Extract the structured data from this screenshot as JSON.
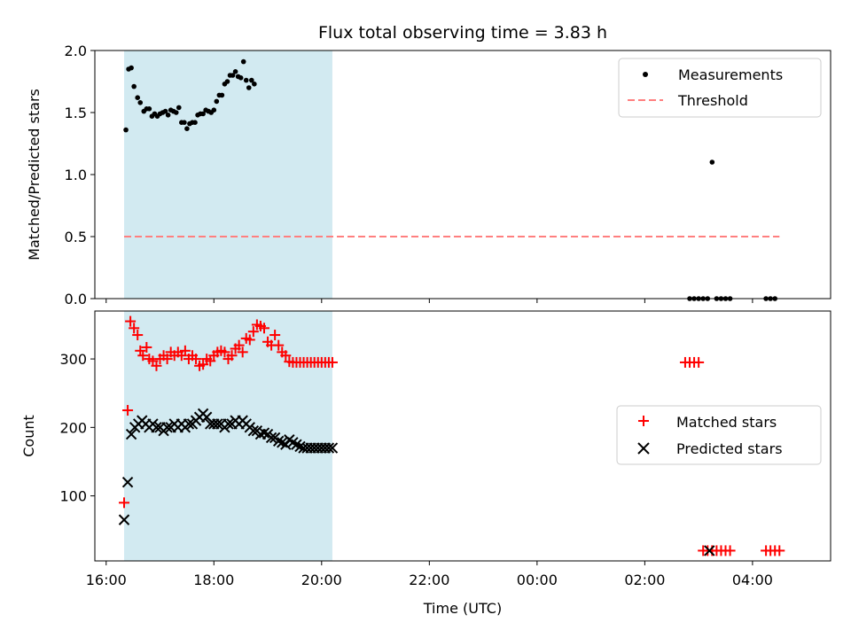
{
  "chart_data": [
    {
      "type": "scatter",
      "title": "Flux total observing time = 3.83 h",
      "xlabel": "",
      "ylabel": "Matched/Predicted stars",
      "xlim": [
        "16:00",
        "05:00"
      ],
      "ylim": [
        0,
        2.0
      ],
      "yticks": [
        "0.0",
        "0.5",
        "1.0",
        "1.5",
        "2.0"
      ],
      "legend": "top-right",
      "shaded_interval": [
        "16:20",
        "20:12"
      ],
      "shade_color": "#add8e6",
      "series": [
        {
          "name": "Measurements",
          "marker": "dot",
          "color": "#000000",
          "x": [
            "16:22",
            "16:25",
            "16:28",
            "16:31",
            "16:35",
            "16:38",
            "16:42",
            "16:45",
            "16:48",
            "16:51",
            "16:54",
            "16:57",
            "17:00",
            "17:03",
            "17:06",
            "17:09",
            "17:12",
            "17:15",
            "17:18",
            "17:21",
            "17:24",
            "17:27",
            "17:30",
            "17:33",
            "17:36",
            "17:39",
            "17:42",
            "17:45",
            "17:48",
            "17:51",
            "17:54",
            "17:57",
            "18:00",
            "18:03",
            "18:06",
            "18:09",
            "18:12",
            "18:15",
            "18:18",
            "18:21",
            "18:24",
            "18:27",
            "18:30",
            "18:33",
            "18:36",
            "18:39",
            "18:42",
            "18:45",
            "18:48",
            "18:51",
            "18:54",
            "18:57",
            "19:00",
            "19:03",
            "19:06",
            "19:09",
            "19:12",
            "19:15",
            "19:18",
            "19:21",
            "19:24",
            "19:27",
            "19:30",
            "19:33",
            "19:36",
            "19:39",
            "19:42",
            "19:45",
            "19:48",
            "19:51",
            "19:54",
            "19:57",
            "20:00",
            "20:03",
            "20:06",
            "20:09",
            "02:50",
            "02:55",
            "03:00",
            "03:05",
            "03:10",
            "03:15",
            "03:20",
            "03:25",
            "03:30",
            "03:35",
            "04:15",
            "04:20",
            "04:25"
          ],
          "y": [
            1.36,
            1.85,
            1.86,
            1.71,
            1.62,
            1.58,
            1.51,
            1.53,
            1.53,
            1.47,
            1.49,
            1.47,
            1.49,
            1.5,
            1.51,
            1.48,
            1.52,
            1.51,
            1.5,
            1.54,
            1.42,
            1.42,
            1.37,
            1.41,
            1.42,
            1.42,
            1.48,
            1.49,
            1.49,
            1.52,
            1.51,
            1.5,
            1.52,
            1.59,
            1.64,
            1.64,
            1.73,
            1.75,
            1.8,
            1.8,
            1.83,
            1.79,
            1.78,
            1.91,
            1.76,
            1.7,
            1.76,
            1.73,
            null,
            null,
            null,
            null,
            null,
            null,
            null,
            null,
            null,
            null,
            null,
            null,
            null,
            null,
            null,
            null,
            null,
            null,
            null,
            null,
            null,
            null,
            null,
            null,
            null,
            null,
            null,
            null,
            0,
            0,
            0,
            0,
            0,
            1.1,
            0,
            0,
            0,
            0,
            0,
            0,
            0
          ]
        },
        {
          "name": "Threshold",
          "style": "dashed-line",
          "color": "#ff7f7f",
          "x": [
            "16:20",
            "04:30"
          ],
          "y": [
            0.5,
            0.5
          ]
        }
      ]
    },
    {
      "type": "scatter",
      "title": "",
      "xlabel": "Time (UTC)",
      "ylabel": "Count",
      "xlim": [
        "16:00",
        "05:00"
      ],
      "ylim": [
        5,
        370
      ],
      "yticks": [
        "100",
        "200",
        "300"
      ],
      "xticks": [
        "16:00",
        "18:00",
        "20:00",
        "22:00",
        "00:00",
        "02:00",
        "04:00"
      ],
      "legend": "center-right",
      "shaded_interval": [
        "16:20",
        "20:12"
      ],
      "shade_color": "#add8e6",
      "series": [
        {
          "name": "Matched stars",
          "marker": "plus",
          "color": "#ff0000",
          "x": [
            "16:20",
            "16:24",
            "16:27",
            "16:31",
            "16:35",
            "16:38",
            "16:41",
            "16:45",
            "16:48",
            "16:52",
            "16:56",
            "17:00",
            "17:04",
            "17:08",
            "17:12",
            "17:16",
            "17:20",
            "17:24",
            "17:28",
            "17:32",
            "17:36",
            "17:40",
            "17:44",
            "17:48",
            "17:52",
            "17:56",
            "18:00",
            "18:04",
            "18:08",
            "18:12",
            "18:16",
            "18:20",
            "18:24",
            "18:28",
            "18:32",
            "18:36",
            "18:40",
            "18:44",
            "18:48",
            "18:52",
            "18:56",
            "19:00",
            "19:04",
            "19:08",
            "19:12",
            "19:16",
            "19:20",
            "19:24",
            "19:28",
            "19:32",
            "19:36",
            "19:40",
            "19:44",
            "19:48",
            "19:52",
            "19:56",
            "20:00",
            "20:04",
            "20:08",
            "20:12",
            "02:45",
            "02:50",
            "02:55",
            "03:00",
            "03:05",
            "03:10",
            "03:15",
            "03:20",
            "03:25",
            "03:30",
            "03:35",
            "04:15",
            "04:20",
            "04:25",
            "04:30"
          ],
          "y": [
            90,
            225,
            355,
            345,
            335,
            312,
            305,
            317,
            300,
            297,
            290,
            300,
            305,
            300,
            310,
            305,
            310,
            305,
            312,
            300,
            305,
            300,
            290,
            292,
            300,
            297,
            305,
            310,
            312,
            310,
            300,
            305,
            315,
            320,
            310,
            330,
            328,
            340,
            350,
            348,
            345,
            325,
            320,
            335,
            320,
            310,
            305,
            296,
            295,
            295,
            295,
            295,
            295,
            295,
            295,
            295,
            295,
            295,
            295,
            295,
            295,
            295,
            295,
            295,
            20,
            20,
            20,
            20,
            20,
            20,
            20,
            20,
            20,
            20,
            20
          ],
          "x_note": ""
        },
        {
          "name": "Predicted stars",
          "marker": "x",
          "color": "#000000",
          "x": [
            "16:20",
            "16:24",
            "16:28",
            "16:32",
            "16:36",
            "16:40",
            "16:44",
            "16:48",
            "16:52",
            "16:56",
            "17:00",
            "17:04",
            "17:08",
            "17:12",
            "17:16",
            "17:20",
            "17:24",
            "17:28",
            "17:32",
            "17:36",
            "17:40",
            "17:44",
            "17:48",
            "17:52",
            "17:56",
            "18:00",
            "18:04",
            "18:08",
            "18:12",
            "18:16",
            "18:20",
            "18:24",
            "18:28",
            "18:32",
            "18:36",
            "18:40",
            "18:44",
            "18:48",
            "18:52",
            "18:56",
            "19:00",
            "19:04",
            "19:08",
            "19:12",
            "19:16",
            "19:20",
            "19:24",
            "19:28",
            "19:32",
            "19:36",
            "19:40",
            "19:44",
            "19:48",
            "19:52",
            "19:56",
            "20:00",
            "20:04",
            "20:08",
            "20:12",
            "03:12"
          ],
          "y": [
            65,
            120,
            190,
            200,
            205,
            210,
            205,
            200,
            205,
            200,
            200,
            195,
            200,
            200,
            205,
            200,
            205,
            200,
            205,
            205,
            210,
            215,
            220,
            215,
            205,
            205,
            205,
            205,
            200,
            205,
            205,
            210,
            205,
            210,
            205,
            200,
            195,
            195,
            190,
            192,
            190,
            185,
            185,
            180,
            178,
            175,
            182,
            178,
            175,
            172,
            170,
            170,
            170,
            170,
            170,
            170,
            170,
            170,
            170,
            20
          ]
        }
      ]
    }
  ]
}
